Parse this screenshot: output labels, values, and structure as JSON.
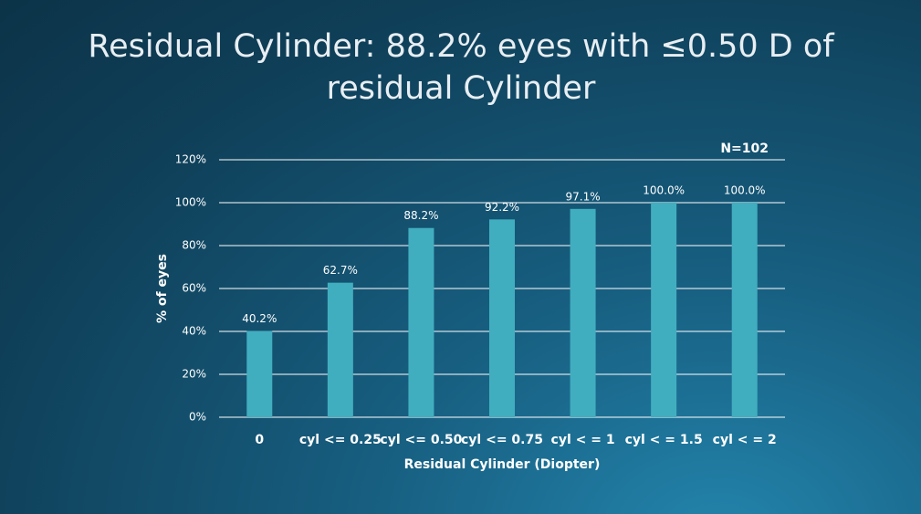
{
  "chart_data": {
    "type": "bar",
    "title": "Residual Cylinder: 88.2% eyes with ≤0.50 D of residual Cylinder",
    "annotation": "N=102",
    "x_label": "Residual Cylinder (Diopter)",
    "y_label": "% of eyes",
    "categories": [
      "0",
      "cyl <= 0.25",
      "cyl <= 0.50",
      "cyl <= 0.75",
      "cyl < = 1",
      "cyl < = 1.5",
      "cyl < = 2"
    ],
    "values": [
      40.2,
      62.7,
      88.2,
      92.2,
      97.1,
      100,
      100
    ],
    "value_labels": [
      "40.2%",
      "62.7%",
      "88.2%",
      "92.2%",
      "97.1%",
      "100.0%",
      "100.0%"
    ],
    "color": "#41aebf",
    "ylim": [
      0,
      120
    ],
    "yticks": [
      {
        "value": 0,
        "label": "0%"
      },
      {
        "value": 20,
        "label": "20%"
      },
      {
        "value": 40,
        "label": "40%"
      },
      {
        "value": 60,
        "label": "60%"
      },
      {
        "value": 80,
        "label": "80%"
      },
      {
        "value": 100,
        "label": "100%"
      },
      {
        "value": 120,
        "label": "120%"
      }
    ],
    "grid": true
  }
}
